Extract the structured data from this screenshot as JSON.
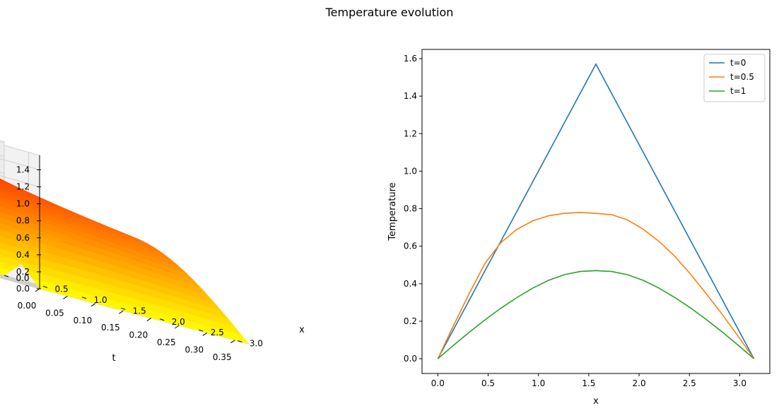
{
  "figure": {
    "title": "Temperature evolution"
  },
  "chart_data": [
    {
      "type": "surface3d",
      "title": "",
      "xlabel": "t",
      "ylabel": "x",
      "zlabel": "",
      "t_ticks": [
        0.0,
        0.05,
        0.1,
        0.15,
        0.2,
        0.25,
        0.3,
        0.35
      ],
      "t_tick_labels": [
        "0.00",
        "0.05",
        "0.10",
        "0.15",
        "0.20",
        "0.25",
        "0.30",
        "0.35"
      ],
      "x_ticks": [
        0.0,
        0.5,
        1.0,
        1.5,
        2.0,
        2.5,
        3.0
      ],
      "x_tick_labels": [
        "0.0",
        "0.5",
        "1.0",
        "1.5",
        "2.0",
        "2.5",
        "3.0"
      ],
      "z_ticks": [
        0.0,
        0.2,
        0.4,
        0.6,
        0.8,
        1.0,
        1.2,
        1.4
      ],
      "z_tick_labels": [
        "0.0",
        "0.2",
        "0.4",
        "0.6",
        "0.8",
        "1.0",
        "1.2",
        "1.4"
      ],
      "t_range": [
        0,
        0.375
      ],
      "x_range": [
        0,
        3.1416
      ],
      "z_range": [
        0,
        1.5708
      ],
      "colormap": "autumn",
      "surface": "u(x,t) = triangle-wave initial condition (peak pi/2 at x=pi/2) diffusing over time"
    },
    {
      "type": "line",
      "title": "",
      "xlabel": "x",
      "ylabel": "Temperature",
      "xlim": [
        -0.157,
        3.299
      ],
      "ylim": [
        -0.0785,
        1.649
      ],
      "x_ticks": [
        0.0,
        0.5,
        1.0,
        1.5,
        2.0,
        2.5,
        3.0
      ],
      "x_tick_labels": [
        "0.0",
        "0.5",
        "1.0",
        "1.5",
        "2.0",
        "2.5",
        "3.0"
      ],
      "y_ticks": [
        0.0,
        0.2,
        0.4,
        0.6,
        0.8,
        1.0,
        1.2,
        1.4,
        1.6
      ],
      "y_tick_labels": [
        "0.0",
        "0.2",
        "0.4",
        "0.6",
        "0.8",
        "1.0",
        "1.2",
        "1.4",
        "1.6"
      ],
      "legend_position": "top-right",
      "x": [
        0.0,
        0.1571,
        0.3142,
        0.4712,
        0.6283,
        0.7854,
        0.9425,
        1.0996,
        1.2566,
        1.4137,
        1.5708,
        1.7279,
        1.885,
        2.042,
        2.1991,
        2.3562,
        2.5133,
        2.6704,
        2.8274,
        2.9845,
        3.1416
      ],
      "series": [
        {
          "name": "t=0",
          "color": "#1f77b4",
          "values": [
            0.0,
            0.1571,
            0.3142,
            0.4712,
            0.6283,
            0.7854,
            0.9425,
            1.0996,
            1.2566,
            1.4137,
            1.5708,
            1.4137,
            1.2566,
            1.0996,
            0.9425,
            0.7854,
            0.6283,
            0.4712,
            0.3142,
            0.1571,
            0.0
          ]
        },
        {
          "name": "t=0.5",
          "color": "#ff7f0e",
          "values": [
            0.0,
            0.178,
            0.35,
            0.51,
            0.62,
            0.69,
            0.735,
            0.762,
            0.775,
            0.78,
            0.775,
            0.768,
            0.74,
            0.69,
            0.625,
            0.545,
            0.45,
            0.345,
            0.235,
            0.12,
            0.0
          ]
        },
        {
          "name": "t=1",
          "color": "#2ca02c",
          "values": [
            0.0,
            0.072,
            0.142,
            0.208,
            0.27,
            0.326,
            0.376,
            0.418,
            0.448,
            0.465,
            0.47,
            0.465,
            0.448,
            0.418,
            0.376,
            0.326,
            0.27,
            0.208,
            0.142,
            0.072,
            0.0
          ]
        }
      ]
    }
  ]
}
